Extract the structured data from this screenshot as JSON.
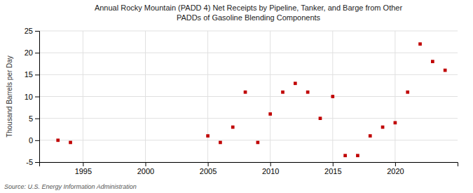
{
  "chart_data": {
    "type": "scatter",
    "title": "Annual Rocky Mountain (PADD 4) Net Receipts by Pipeline, Tanker, and Barge from Other\nPADDs of Gasoline Blending Components",
    "ylabel": "Thousand Barrels per Day",
    "source": "Source: U.S. Energy Information Administration",
    "x": [
      1993,
      1994,
      2005,
      2006,
      2007,
      2008,
      2009,
      2010,
      2011,
      2012,
      2013,
      2014,
      2015,
      2016,
      2017,
      2018,
      2019,
      2020,
      2021,
      2022,
      2023,
      2024
    ],
    "values": [
      0,
      -0.5,
      1.0,
      -0.5,
      3.0,
      11.0,
      -0.5,
      6.0,
      11.0,
      13.0,
      11.0,
      5.0,
      10.0,
      -3.5,
      -3.5,
      1.0,
      3.0,
      4.0,
      11.0,
      22.0,
      18.0,
      16.0
    ],
    "color": "#c00000",
    "marker": "square",
    "xlim": [
      1991.5,
      2025
    ],
    "ylim": [
      -5,
      25
    ],
    "xticks": [
      1995,
      2000,
      2005,
      2010,
      2015,
      2020
    ],
    "yticks": [
      -5,
      0,
      5,
      10,
      15,
      20,
      25
    ],
    "grid": true
  }
}
